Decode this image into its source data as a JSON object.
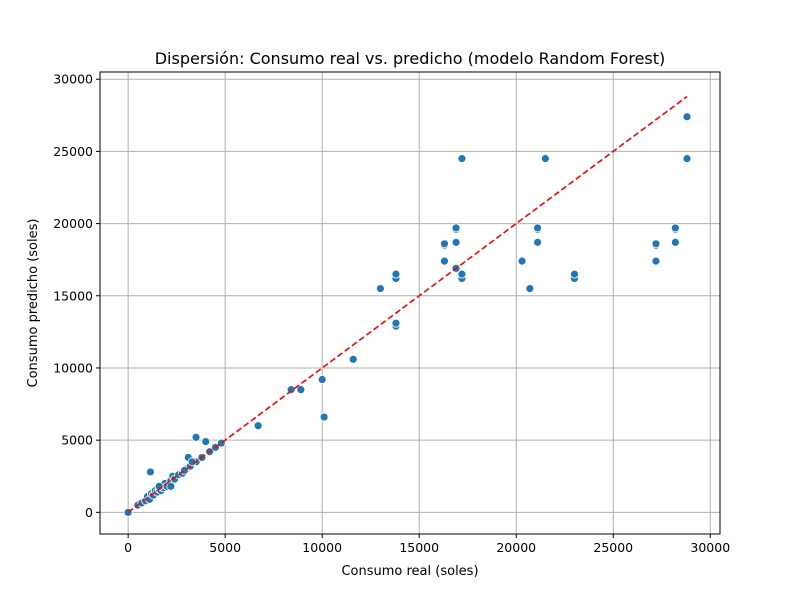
{
  "chart_data": {
    "type": "scatter",
    "title": "Dispersión: Consumo real vs. predicho (modelo Random Forest)",
    "xlabel": "Consumo real (soles)",
    "ylabel": "Consumo predicho (soles)",
    "xlim": [
      -1450,
      30500
    ],
    "ylim": [
      -1500,
      30500
    ],
    "xticks": [
      0,
      5000,
      10000,
      15000,
      20000,
      25000,
      30000
    ],
    "yticks": [
      0,
      5000,
      10000,
      15000,
      20000,
      25000,
      30000
    ],
    "xtick_labels": [
      "0",
      "5000",
      "10000",
      "15000",
      "20000",
      "25000",
      "30000"
    ],
    "ytick_labels": [
      "0",
      "5000",
      "10000",
      "15000",
      "20000",
      "25000",
      "30000"
    ],
    "grid": true,
    "point_color": "#1f77b4",
    "reference_line": {
      "x": [
        0,
        28800
      ],
      "y": [
        0,
        28800
      ],
      "color": "#ff0000",
      "style": "dashed"
    },
    "points": [
      [
        0,
        0
      ],
      [
        500,
        500
      ],
      [
        700,
        650
      ],
      [
        900,
        800
      ],
      [
        1000,
        1100
      ],
      [
        1100,
        900
      ],
      [
        1200,
        1300
      ],
      [
        1300,
        1200
      ],
      [
        1400,
        1500
      ],
      [
        1500,
        1400
      ],
      [
        1600,
        1600
      ],
      [
        1700,
        1500
      ],
      [
        1800,
        1700
      ],
      [
        1900,
        2000
      ],
      [
        2000,
        1800
      ],
      [
        2200,
        2200
      ],
      [
        2300,
        2500
      ],
      [
        2400,
        2300
      ],
      [
        2600,
        2600
      ],
      [
        2800,
        2700
      ],
      [
        3000,
        3000
      ],
      [
        3200,
        3200
      ],
      [
        3500,
        3500
      ],
      [
        3800,
        3800
      ],
      [
        4200,
        4200
      ],
      [
        4500,
        4500
      ],
      [
        4800,
        4800
      ],
      [
        1600,
        1800
      ],
      [
        2200,
        1800
      ],
      [
        2900,
        2900
      ],
      [
        1150,
        2800
      ],
      [
        3100,
        3800
      ],
      [
        3300,
        3500
      ],
      [
        3500,
        5200
      ],
      [
        4000,
        4900
      ],
      [
        6700,
        6000
      ],
      [
        8400,
        8500
      ],
      [
        8900,
        8500
      ],
      [
        10000,
        9200
      ],
      [
        10100,
        6600
      ],
      [
        11600,
        10600
      ],
      [
        13000,
        15500
      ],
      [
        13800,
        12900
      ],
      [
        13800,
        13100
      ],
      [
        13800,
        16200
      ],
      [
        13800,
        16500
      ],
      [
        16300,
        18500
      ],
      [
        16300,
        18600
      ],
      [
        16300,
        17400
      ],
      [
        16900,
        16900
      ],
      [
        16900,
        18700
      ],
      [
        16900,
        19600
      ],
      [
        16900,
        19700
      ],
      [
        17200,
        16200
      ],
      [
        17200,
        16500
      ],
      [
        17200,
        24500
      ],
      [
        20300,
        17400
      ],
      [
        20700,
        15500
      ],
      [
        21100,
        18700
      ],
      [
        21100,
        19600
      ],
      [
        21100,
        19700
      ],
      [
        21500,
        24500
      ],
      [
        23000,
        16200
      ],
      [
        23000,
        16500
      ],
      [
        27200,
        17400
      ],
      [
        27200,
        18500
      ],
      [
        27200,
        18600
      ],
      [
        28200,
        18700
      ],
      [
        28200,
        19600
      ],
      [
        28200,
        19700
      ],
      [
        28800,
        24500
      ],
      [
        28800,
        27400
      ]
    ]
  }
}
